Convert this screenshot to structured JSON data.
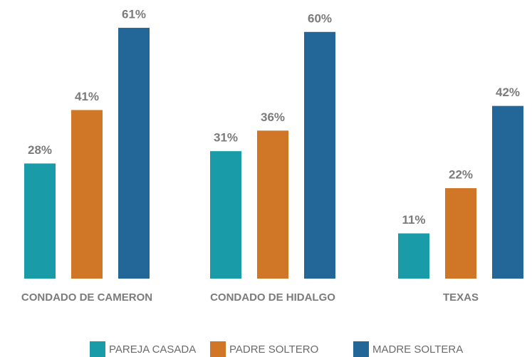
{
  "chart_data": {
    "type": "bar",
    "categories": [
      "CONDADO DE CAMERON",
      "CONDADO DE HIDALGO",
      "TEXAS"
    ],
    "series": [
      {
        "name": "PAREJA CASADA",
        "color": "#1a9ba8",
        "values": [
          28,
          31,
          11
        ],
        "value_labels": [
          "28%",
          "31%",
          "11%"
        ]
      },
      {
        "name": "PADRE SOLTERO",
        "color": "#cf7627",
        "values": [
          41,
          36,
          22
        ],
        "value_labels": [
          "41%",
          "36%",
          "22%"
        ]
      },
      {
        "name": "MADRE SOLTERA",
        "color": "#236798",
        "values": [
          61,
          60,
          42
        ],
        "value_labels": [
          "61%",
          "60%",
          "42%"
        ]
      }
    ]
  }
}
